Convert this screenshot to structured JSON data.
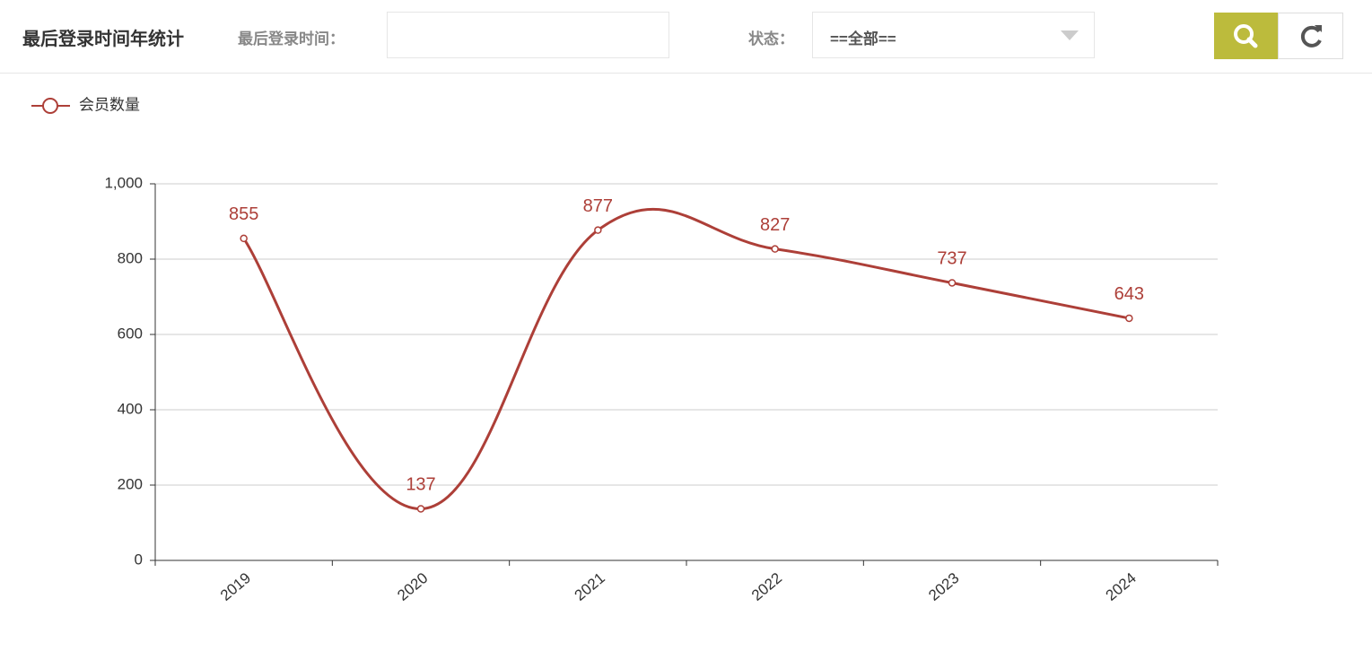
{
  "header": {
    "title": "最后登录时间年统计",
    "time_label": "最后登录时间：",
    "status_label": "状态：",
    "status_value": "==全部=="
  },
  "chart_data": {
    "type": "line",
    "legend": "会员数量",
    "categories": [
      "2019",
      "2020",
      "2021",
      "2022",
      "2023",
      "2024"
    ],
    "series": [
      {
        "name": "会员数量",
        "color": "#ad3f38",
        "values": [
          855,
          137,
          877,
          827,
          737,
          643
        ]
      }
    ],
    "ylim": [
      0,
      1000
    ],
    "yticks": [
      0,
      200,
      400,
      600,
      800,
      {
        "value": 1000,
        "label": "1,000"
      }
    ],
    "grid": true,
    "smooth": true,
    "legend_position": "top-left"
  }
}
